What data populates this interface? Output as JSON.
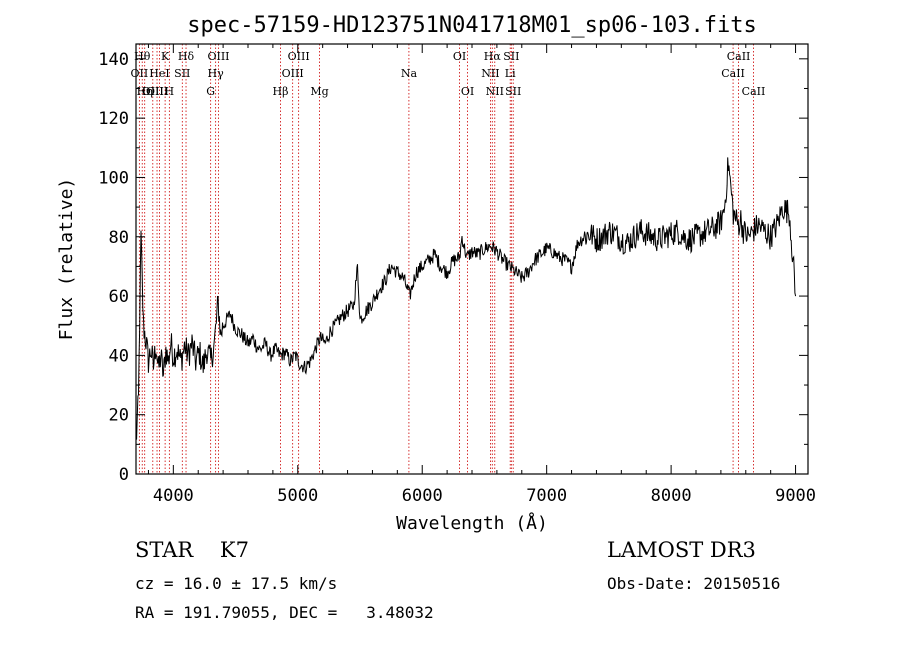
{
  "chart_data": {
    "type": "line",
    "title": "spec-57159-HD123751N041718M01_sp06-103.fits",
    "xlabel": "Wavelength (Å)",
    "ylabel": "Flux (relative)",
    "xlim": [
      3700,
      9100
    ],
    "ylim": [
      0,
      145
    ],
    "xticks": [
      4000,
      5000,
      6000,
      7000,
      8000,
      9000
    ],
    "yticks": [
      0,
      20,
      40,
      60,
      80,
      100,
      120,
      140
    ],
    "line_color": "#000000",
    "marker_color": "#cc0000",
    "series": [
      {
        "name": "flux",
        "x": [
          3700,
          3720,
          3740,
          3760,
          3780,
          3800,
          3820,
          3840,
          3860,
          3880,
          3900,
          3920,
          3940,
          3960,
          3980,
          4000,
          4030,
          4060,
          4090,
          4120,
          4150,
          4180,
          4210,
          4240,
          4270,
          4300,
          4330,
          4360,
          4380,
          4400,
          4430,
          4460,
          4490,
          4520,
          4550,
          4580,
          4610,
          4640,
          4670,
          4700,
          4740,
          4780,
          4820,
          4860,
          4900,
          4940,
          4980,
          5020,
          5060,
          5100,
          5140,
          5180,
          5220,
          5260,
          5300,
          5350,
          5400,
          5450,
          5480,
          5500,
          5550,
          5600,
          5650,
          5700,
          5750,
          5800,
          5850,
          5900,
          5950,
          6000,
          6050,
          6100,
          6150,
          6200,
          6250,
          6300,
          6320,
          6340,
          6360,
          6400,
          6450,
          6500,
          6550,
          6600,
          6650,
          6700,
          6750,
          6800,
          6850,
          6900,
          6950,
          7000,
          7050,
          7100,
          7150,
          7200,
          7250,
          7300,
          7350,
          7400,
          7450,
          7500,
          7550,
          7600,
          7650,
          7700,
          7750,
          7800,
          7850,
          7900,
          7950,
          8000,
          8050,
          8100,
          8150,
          8200,
          8250,
          8300,
          8350,
          8400,
          8430,
          8460,
          8500,
          8540,
          8560,
          8580,
          8620,
          8660,
          8700,
          8750,
          8800,
          8850,
          8900,
          8950,
          8980,
          9000
        ],
        "values": [
          10,
          25,
          80,
          50,
          45,
          38,
          42,
          36,
          44,
          35,
          40,
          33,
          42,
          38,
          44,
          40,
          42,
          38,
          43,
          40,
          44,
          38,
          41,
          36,
          42,
          38,
          44,
          58,
          47,
          50,
          52,
          54,
          50,
          48,
          47,
          45,
          44,
          46,
          43,
          42,
          44,
          40,
          42,
          40,
          41,
          38,
          40,
          37,
          36,
          38,
          42,
          46,
          44,
          48,
          50,
          53,
          55,
          57,
          70,
          52,
          55,
          58,
          62,
          65,
          70,
          68,
          66,
          60,
          68,
          70,
          72,
          74,
          70,
          68,
          72,
          73,
          80,
          76,
          73,
          75,
          74,
          76,
          77,
          75,
          72,
          70,
          68,
          66,
          68,
          72,
          74,
          76,
          75,
          73,
          72,
          70,
          78,
          80,
          81,
          79,
          80,
          82,
          81,
          79,
          78,
          80,
          82,
          81,
          80,
          79,
          80,
          81,
          82,
          80,
          79,
          80,
          81,
          82,
          83,
          85,
          90,
          105,
          88,
          84,
          86,
          82,
          80,
          82,
          84,
          82,
          80,
          84,
          90,
          88,
          72,
          60
        ]
      }
    ],
    "lines": [
      {
        "x": 3727,
        "label": "OII",
        "row": 1
      },
      {
        "x": 3750,
        "label": "Hθ",
        "row": 0
      },
      {
        "x": 3770,
        "label": "Hη",
        "row": 2
      },
      {
        "x": 3835,
        "label": "OIII",
        "row": 2
      },
      {
        "x": 3869,
        "label": "OIII",
        "row": 2
      },
      {
        "x": 3889,
        "label": "HeI",
        "row": 1
      },
      {
        "x": 3934,
        "label": "K",
        "row": 0
      },
      {
        "x": 3968,
        "label": "H",
        "row": 2
      },
      {
        "x": 4072,
        "label": "SII",
        "row": 1
      },
      {
        "x": 4102,
        "label": "Hδ",
        "row": 0
      },
      {
        "x": 4300,
        "label": "G",
        "row": 2
      },
      {
        "x": 4340,
        "label": "Hγ",
        "row": 1
      },
      {
        "x": 4363,
        "label": "OIII",
        "row": 0
      },
      {
        "x": 4861,
        "label": "Hβ",
        "row": 2
      },
      {
        "x": 4959,
        "label": "OIII",
        "row": 1
      },
      {
        "x": 5007,
        "label": "OIII",
        "row": 0
      },
      {
        "x": 5175,
        "label": "Mg",
        "row": 2
      },
      {
        "x": 5893,
        "label": "Na",
        "row": 1
      },
      {
        "x": 6300,
        "label": "OI",
        "row": 0
      },
      {
        "x": 6364,
        "label": "OI",
        "row": 2
      },
      {
        "x": 6548,
        "label": "NII",
        "row": 1
      },
      {
        "x": 6563,
        "label": "Hα",
        "row": 0
      },
      {
        "x": 6583,
        "label": "NII",
        "row": 2
      },
      {
        "x": 6707,
        "label": "Li",
        "row": 1
      },
      {
        "x": 6716,
        "label": "SII",
        "row": 0
      },
      {
        "x": 6731,
        "label": "SII",
        "row": 2
      },
      {
        "x": 8498,
        "label": "CaII",
        "row": 1
      },
      {
        "x": 8542,
        "label": "CaII",
        "row": 0
      },
      {
        "x": 8662,
        "label": "CaII",
        "row": 2
      }
    ]
  },
  "info": {
    "left_line1": "STAR    K7",
    "left_line2": "cz = 16.0 ± 17.5 km/s",
    "left_line3": "RA = 191.79055, DEC =   3.48032",
    "right_line1": "LAMOST DR3",
    "right_line2": "Obs-Date: 20150516"
  }
}
